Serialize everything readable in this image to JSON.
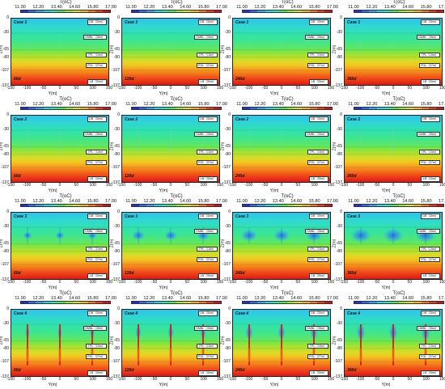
{
  "legend_title": "T(oC)",
  "legend_ticks": [
    "11.00",
    "12.20",
    "13.40",
    "14.60",
    "15.80",
    "17.00"
  ],
  "colors": [
    "#1d2ee0",
    "#2a6bf2",
    "#2fa3f2",
    "#27d4e8",
    "#2ee8b0",
    "#4fe84f",
    "#9ee832",
    "#d8e12a",
    "#f5b41f",
    "#f5781c",
    "#ef3a1a",
    "#d60f10"
  ],
  "x_ticks": [
    "-150",
    "-100",
    "-50",
    "0",
    "50",
    "100",
    "150"
  ],
  "y_ticks": [
    "0",
    "-30",
    "-65",
    "-80",
    "-107",
    "-137"
  ],
  "xlabel": "Y(m)",
  "ylabel": "Z(m)",
  "layers": [
    "DB（30m）",
    "GMBL（35m）",
    "TPL（15m）",
    "PGL（27m）",
    "LB（30m）"
  ],
  "chart_data": {
    "type": "heatmap",
    "description_variable": "T(oC)",
    "colorbar": {
      "min": 11.0,
      "max": 17.0,
      "ticks": [
        11.0,
        12.2,
        13.4,
        14.6,
        15.8,
        17.0
      ]
    },
    "xlim": [
      -150,
      150
    ],
    "ylim": [
      -137,
      0
    ],
    "layer_boundaries_m": [
      0,
      -30,
      -65,
      -80,
      -107,
      -137
    ],
    "cases": [
      "Case 1",
      "Case 2",
      "Case 3",
      "Case 4"
    ],
    "days": [
      "60d",
      "120d",
      "240d",
      "360d"
    ],
    "well_positions_m": [
      -100,
      0,
      100
    ]
  },
  "panels": [
    {
      "case": "Case 1",
      "day": "60d",
      "ci": 0,
      "di": 0
    },
    {
      "case": "Case 1",
      "day": "120d",
      "ci": 0,
      "di": 1
    },
    {
      "case": "Case 1",
      "day": "240d",
      "ci": 0,
      "di": 2
    },
    {
      "case": "Case 1",
      "day": "360d",
      "ci": 0,
      "di": 3
    },
    {
      "case": "Case 2",
      "day": "60d",
      "ci": 1,
      "di": 0
    },
    {
      "case": "Case 2",
      "day": "120d",
      "ci": 1,
      "di": 1
    },
    {
      "case": "Case 2",
      "day": "240d",
      "ci": 1,
      "di": 2
    },
    {
      "case": "Case 2",
      "day": "360d",
      "ci": 1,
      "di": 3
    },
    {
      "case": "Case 3",
      "day": "60d",
      "ci": 2,
      "di": 0
    },
    {
      "case": "Case 3",
      "day": "120d",
      "ci": 2,
      "di": 1
    },
    {
      "case": "Case 3",
      "day": "240d",
      "ci": 2,
      "di": 2
    },
    {
      "case": "Case 3",
      "day": "360d",
      "ci": 2,
      "di": 3
    },
    {
      "case": "Case 4",
      "day": "60d",
      "ci": 3,
      "di": 0
    },
    {
      "case": "Case 4",
      "day": "120d",
      "ci": 3,
      "di": 1
    },
    {
      "case": "Case 4",
      "day": "240d",
      "ci": 3,
      "di": 2
    },
    {
      "case": "Case 4",
      "day": "360d",
      "ci": 3,
      "di": 3
    }
  ]
}
